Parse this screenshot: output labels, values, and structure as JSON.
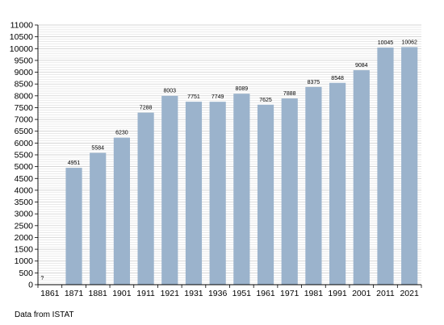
{
  "chart_data": {
    "type": "bar",
    "categories": [
      "1861",
      "1871",
      "1881",
      "1901",
      "1911",
      "1921",
      "1931",
      "1936",
      "1951",
      "1961",
      "1971",
      "1981",
      "1991",
      "2001",
      "2011",
      "2021"
    ],
    "values": [
      null,
      4951,
      5584,
      6230,
      7288,
      8003,
      7751,
      7749,
      8089,
      7625,
      7888,
      8375,
      8548,
      9084,
      10045,
      10062
    ],
    "data_labels": [
      "?",
      "4951",
      "5584",
      "6230",
      "7288",
      "8003",
      "7751",
      "7749",
      "8089",
      "7625",
      "7888",
      "8375",
      "8548",
      "9084",
      "10045",
      "10062"
    ],
    "ylim": [
      0,
      11000
    ],
    "ytick_step": 500,
    "grid": true,
    "bar_color": "#9bb3cc",
    "title": "",
    "xlabel": "",
    "ylabel": ""
  },
  "source_note": "Data from ISTAT"
}
